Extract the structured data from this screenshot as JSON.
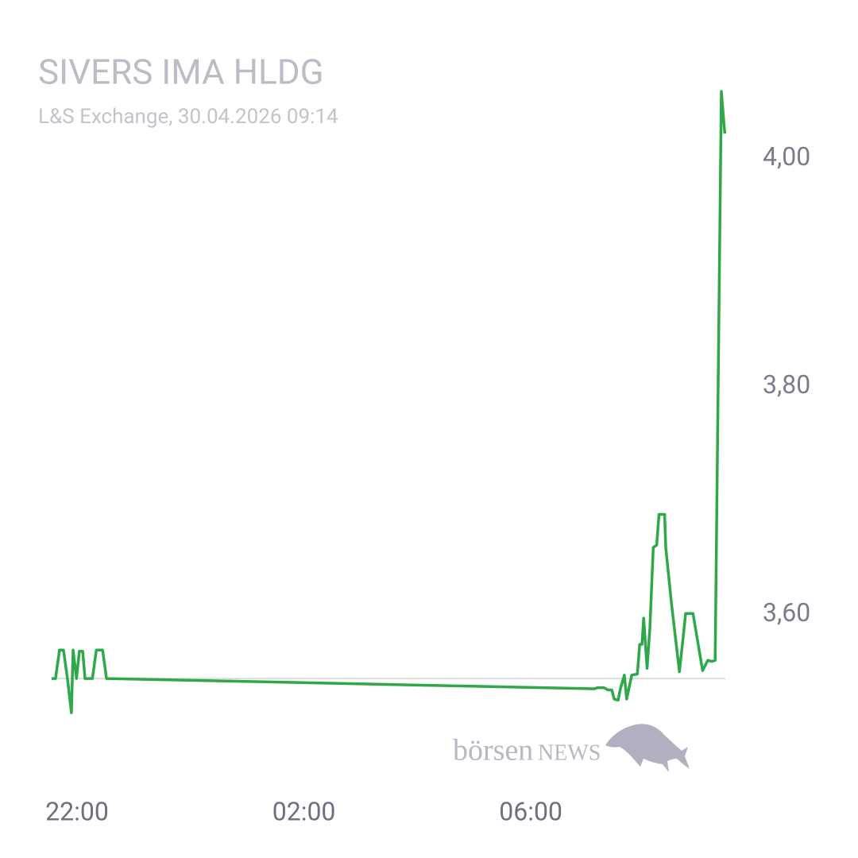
{
  "chart_data": {
    "type": "line",
    "title": "SIVERS IMA HLDG",
    "subtitle": "L&S Exchange, 30.04.2026 09:14",
    "logo": {
      "part1": "börsen",
      "part2": "NEWS"
    },
    "xlim": [
      21.5,
      33.5
    ],
    "ylim": [
      3.45,
      4.08
    ],
    "xticks": [
      {
        "value": 22,
        "label": "22:00"
      },
      {
        "value": 26,
        "label": "02:00"
      },
      {
        "value": 30,
        "label": "06:00"
      }
    ],
    "yticks": [
      {
        "value": 3.6,
        "label": "3,60"
      },
      {
        "value": 3.8,
        "label": "3,80"
      },
      {
        "value": 4.0,
        "label": "4,00"
      }
    ],
    "reference_line": 3.544,
    "reference_color": "#dddddd",
    "series": [
      {
        "color": "#2ea84a",
        "x": [
          21.55,
          21.62,
          21.69,
          21.76,
          21.83,
          21.9,
          21.93,
          21.99,
          22.04,
          22.1,
          22.14,
          22.27,
          22.34,
          22.45,
          22.52,
          31.12,
          31.18,
          31.29,
          31.36,
          31.43,
          31.47,
          31.54,
          31.58,
          31.65,
          31.69,
          31.78,
          31.88,
          31.92,
          31.96,
          31.99,
          32.05,
          32.1,
          32.16,
          32.22,
          32.26,
          32.36,
          32.38,
          32.48,
          32.62,
          32.69,
          32.73,
          32.86,
          33.03,
          33.12,
          33.19,
          33.25,
          33.36,
          33.42
        ],
        "values": [
          3.544,
          3.544,
          3.569,
          3.569,
          3.544,
          3.514,
          3.569,
          3.544,
          3.568,
          3.568,
          3.544,
          3.544,
          3.569,
          3.569,
          3.544,
          3.535,
          3.536,
          3.536,
          3.534,
          3.534,
          3.526,
          3.525,
          3.535,
          3.547,
          3.526,
          3.547,
          3.548,
          3.574,
          3.574,
          3.597,
          3.553,
          3.589,
          3.659,
          3.661,
          3.688,
          3.688,
          3.659,
          3.61,
          3.55,
          3.582,
          3.601,
          3.601,
          3.551,
          3.56,
          3.559,
          3.56,
          4.059,
          4.022
        ]
      }
    ]
  }
}
